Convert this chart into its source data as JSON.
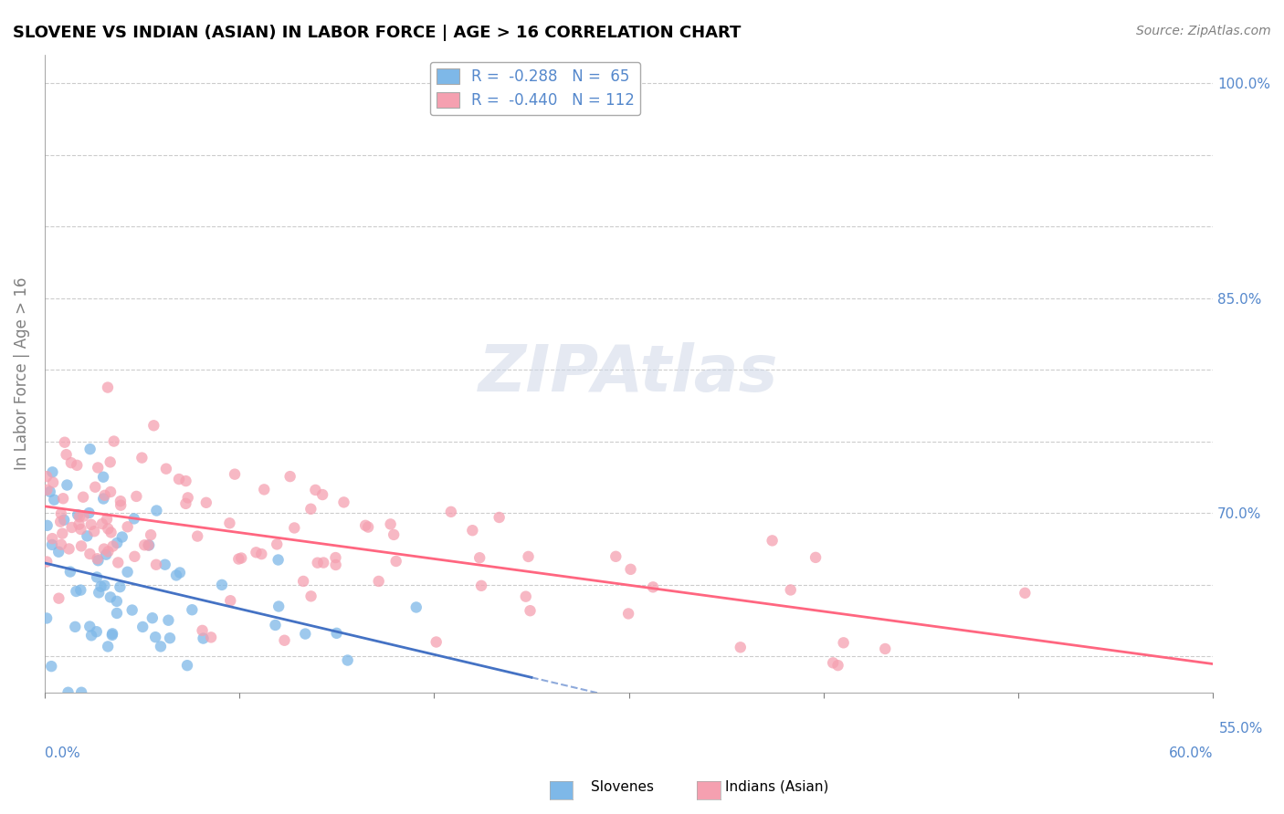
{
  "title": "SLOVENE VS INDIAN (ASIAN) IN LABOR FORCE | AGE > 16 CORRELATION CHART",
  "source": "Source: ZipAtlas.com",
  "ylabel": "In Labor Force | Age > 16",
  "xlim": [
    0.0,
    0.6
  ],
  "ylim": [
    0.575,
    1.02
  ],
  "slovene_R": -0.288,
  "slovene_N": 65,
  "indian_R": -0.44,
  "indian_N": 112,
  "slovene_color": "#7EB8E8",
  "indian_color": "#F5A0B0",
  "slovene_line_color": "#4472C4",
  "indian_line_color": "#FF6680",
  "watermark_color": "#D0D8E8",
  "background_color": "#FFFFFF",
  "grid_color": "#CCCCCC",
  "legend_label1": "R =  -0.288   N =  65",
  "legend_label2": "R =  -0.440   N = 112"
}
